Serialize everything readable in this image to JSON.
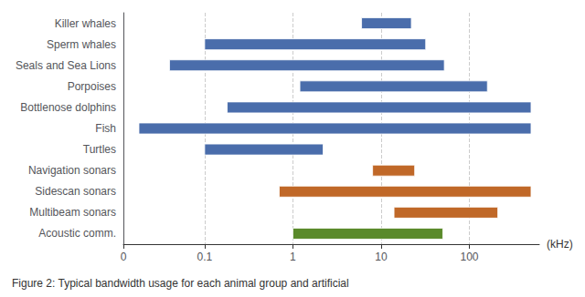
{
  "chart_data": {
    "type": "bar",
    "orientation": "horizontal",
    "title": "Figure 2: Typical bandwidth usage for each animal group and artificial",
    "xlabel": "(kHz)",
    "categories": [
      "Killer whales",
      "Sperm whales",
      "Seals and Sea Lions",
      "Porpoises",
      "Bottlenose dolphins",
      "Fish",
      "Turtles",
      "Navigation sonars",
      "Sidescan sonars",
      "Multibeam sonars",
      "Acoustic comm."
    ],
    "values": [
      [
        6,
        22
      ],
      [
        0.1,
        32
      ],
      [
        0.04,
        52
      ],
      [
        1.2,
        160
      ],
      [
        0.18,
        500
      ],
      [
        0.018,
        500
      ],
      [
        0.1,
        2.2
      ],
      [
        8,
        24
      ],
      [
        0.7,
        500
      ],
      [
        14,
        210
      ],
      [
        1.0,
        50
      ]
    ],
    "colors": [
      "#4a6dab",
      "#4a6dab",
      "#4a6dab",
      "#4a6dab",
      "#4a6dab",
      "#4a6dab",
      "#4a6dab",
      "#c06828",
      "#c06828",
      "#c06828",
      "#5a8a2a"
    ],
    "log": "x",
    "xlim": [
      0.012,
      620
    ],
    "xticks": [
      {
        "value": 0.012,
        "label": "0"
      },
      0.1,
      1,
      10,
      100
    ],
    "grid": true
  }
}
